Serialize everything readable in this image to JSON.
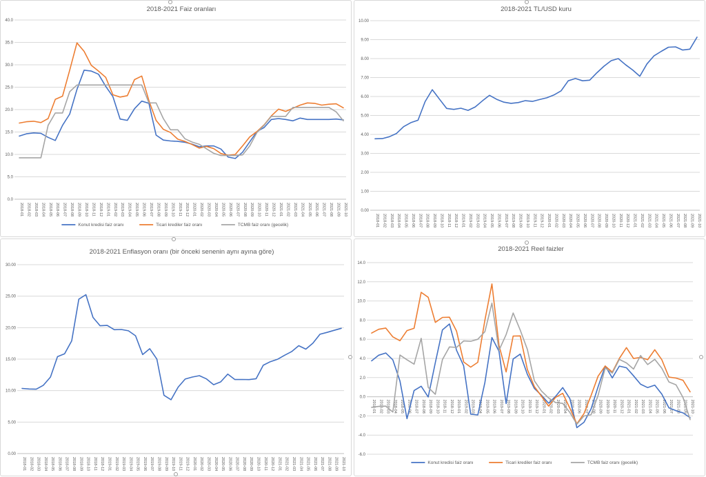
{
  "app": {
    "kind": "spreadsheet-chart-sheet",
    "background": "#ffffff"
  },
  "colors": {
    "series_blue": "#4472c4",
    "series_orange": "#ed7d31",
    "series_gray": "#a5a5a5",
    "gridline": "#d9d9d9",
    "axis": "#bfbfbf",
    "text": "#595959"
  },
  "legend_labels": [
    "Konut kredisi faiz oranı",
    "Ticari krediler faiz oranı",
    "TCMB faiz oranı (gecelik)"
  ],
  "chart_data": {
    "categories": [
      "2018-01",
      "2018-02",
      "2018-03",
      "2018-04",
      "2018-05",
      "2018-06",
      "2018-07",
      "2018-08",
      "2018-09",
      "2018-10",
      "2018-11",
      "2018-12",
      "2019-01",
      "2019-02",
      "2019-03",
      "2019-04",
      "2019-05",
      "2019-06",
      "2019-07",
      "2019-08",
      "2019-09",
      "2019-10",
      "2019-11",
      "2019-12",
      "2020-01",
      "2020-02",
      "2020-03",
      "2020-04",
      "2020-05",
      "2020-06",
      "2020-07",
      "2020-08",
      "2020-09",
      "2020-10",
      "2020-11",
      "2020-12",
      "2021-01",
      "2021-02",
      "2021-03",
      "2021-04",
      "2021-05",
      "2021-06",
      "2021-07",
      "2021-08",
      "2021-09",
      "2021-10"
    ],
    "charts": [
      {
        "id": "faiz",
        "type": "line",
        "title": "2018-2021 Faiz oranları",
        "ylim": [
          0,
          40
        ],
        "ystep": 5,
        "ydecimals": 1,
        "grid": true,
        "legend_position": "bottom",
        "series": [
          {
            "name": "Konut kredisi faiz oranı",
            "color": "series_blue",
            "values": [
              14.1,
              14.6,
              14.8,
              14.7,
              13.8,
              13.1,
              16.5,
              19.0,
              24.5,
              28.8,
              28.6,
              27.9,
              25.2,
              22.9,
              17.9,
              17.6,
              20.2,
              21.9,
              21.4,
              14.3,
              13.2,
              13.0,
              12.9,
              12.7,
              12.3,
              11.7,
              11.9,
              11.9,
              11.2,
              9.4,
              9.1,
              10.5,
              12.8,
              15.1,
              16.0,
              17.8,
              18.0,
              17.8,
              17.5,
              18.1,
              17.8,
              17.8,
              17.8,
              17.8,
              17.9,
              17.7
            ]
          },
          {
            "name": "Ticari krediler faiz oranı",
            "color": "series_orange",
            "values": [
              17.0,
              17.3,
              17.4,
              17.1,
              18.0,
              22.3,
              23.0,
              28.8,
              34.9,
              33.0,
              29.9,
              28.6,
              27.2,
              23.3,
              22.8,
              23.1,
              26.7,
              27.5,
              22.0,
              17.6,
              15.6,
              14.9,
              13.4,
              12.9,
              12.2,
              11.4,
              11.8,
              11.3,
              10.2,
              9.8,
              10.0,
              11.9,
              13.9,
              15.1,
              16.6,
              18.6,
              20.1,
              19.6,
              20.3,
              21.0,
              21.5,
              21.4,
              21.0,
              21.2,
              21.3,
              20.4
            ]
          },
          {
            "name": "TCMB faiz oranı (gecelik)",
            "color": "series_gray",
            "values": [
              9.25,
              9.25,
              9.25,
              9.25,
              16.5,
              19.25,
              19.25,
              24.0,
              25.5,
              25.5,
              25.5,
              25.5,
              25.5,
              25.5,
              25.5,
              25.5,
              25.5,
              25.5,
              21.5,
              21.5,
              18.0,
              15.5,
              15.5,
              13.5,
              12.75,
              12.25,
              11.25,
              10.25,
              9.75,
              9.75,
              9.75,
              9.9,
              11.9,
              14.9,
              16.5,
              18.5,
              18.5,
              18.5,
              20.5,
              20.5,
              20.5,
              20.5,
              20.5,
              20.5,
              19.5,
              17.5
            ]
          }
        ]
      },
      {
        "id": "usd",
        "type": "line",
        "title": "2018-2021 TL/USD kuru",
        "ylim": [
          0,
          10
        ],
        "ystep": 1,
        "ydecimals": 2,
        "grid": true,
        "legend_position": "none",
        "series": [
          {
            "name": "TL/USD",
            "color": "series_blue",
            "values": [
              3.77,
              3.78,
              3.88,
              4.05,
              4.41,
              4.62,
              4.75,
              5.73,
              6.36,
              5.86,
              5.37,
              5.32,
              5.38,
              5.27,
              5.45,
              5.77,
              6.06,
              5.85,
              5.7,
              5.64,
              5.68,
              5.78,
              5.74,
              5.84,
              5.93,
              6.08,
              6.3,
              6.83,
              6.95,
              6.83,
              6.86,
              7.25,
              7.6,
              7.89,
              8.0,
              7.68,
              7.4,
              7.07,
              7.72,
              8.15,
              8.38,
              8.6,
              8.62,
              8.45,
              8.5,
              9.13
            ]
          }
        ]
      },
      {
        "id": "enflasyon",
        "type": "line",
        "title": "2018-2021 Enflasyon oranı (bir önceki senenin aynı ayına göre)",
        "ylim": [
          0,
          30
        ],
        "ystep": 5,
        "ydecimals": 2,
        "grid": true,
        "legend_position": "none",
        "series": [
          {
            "name": "Enflasyon oranı",
            "color": "series_blue",
            "values": [
              10.35,
              10.26,
              10.23,
              10.85,
              12.15,
              15.39,
              15.85,
              17.9,
              24.52,
              25.24,
              21.62,
              20.3,
              20.35,
              19.67,
              19.71,
              19.5,
              18.71,
              15.72,
              16.65,
              15.01,
              9.26,
              8.55,
              10.56,
              11.84,
              12.15,
              12.37,
              11.86,
              10.94,
              11.39,
              12.62,
              11.76,
              11.77,
              11.75,
              11.89,
              14.03,
              14.6,
              14.97,
              15.61,
              16.19,
              17.14,
              16.59,
              17.53,
              18.95,
              19.25,
              19.58,
              19.89
            ]
          }
        ]
      },
      {
        "id": "reel",
        "type": "line",
        "title": "2018-2021 Reel faizler",
        "ylim": [
          -6,
          14
        ],
        "ystep": 2,
        "ydecimals": 1,
        "grid": true,
        "legend_position": "bottom",
        "x_labels_at_zero": true,
        "series": [
          {
            "name": "Konut kredisi faiz oranı",
            "color": "series_blue",
            "values": [
              3.75,
              4.34,
              4.57,
              3.85,
              1.65,
              -2.29,
              0.65,
              1.1,
              -0.02,
              3.56,
              6.98,
              7.6,
              4.85,
              3.23,
              -1.81,
              -1.9,
              1.49,
              6.18,
              4.75,
              -0.71,
              3.94,
              4.45,
              2.34,
              0.86,
              0.15,
              -0.67,
              0.04,
              0.96,
              -0.19,
              -3.22,
              -2.66,
              -1.27,
              1.05,
              3.21,
              1.97,
              3.2,
              3.03,
              2.19,
              1.31,
              0.96,
              1.21,
              0.27,
              -1.15,
              -1.45,
              -1.68,
              -2.19
            ]
          },
          {
            "name": "Ticari krediler faiz oranı",
            "color": "series_orange",
            "values": [
              6.65,
              7.04,
              7.17,
              6.25,
              5.85,
              6.91,
              7.15,
              10.9,
              10.38,
              7.76,
              8.28,
              8.3,
              6.85,
              3.63,
              3.09,
              3.6,
              7.99,
              11.78,
              5.35,
              2.59,
              6.34,
              6.35,
              2.84,
              1.06,
              0.05,
              -0.97,
              -0.06,
              0.36,
              -1.19,
              -2.82,
              -1.76,
              0.13,
              2.15,
              3.21,
              2.57,
              4.0,
              5.13,
              3.99,
              4.11,
              3.86,
              4.91,
              3.87,
              2.05,
              1.95,
              1.72,
              0.51
            ]
          },
          {
            "name": "TCMB faiz oranı (gecelik)",
            "color": "series_gray",
            "values": [
              -1.1,
              -1.01,
              -0.98,
              -1.6,
              4.35,
              3.86,
              3.4,
              6.1,
              0.98,
              0.26,
              3.88,
              5.2,
              5.15,
              5.83,
              5.79,
              6.0,
              6.79,
              9.78,
              4.85,
              6.49,
              8.74,
              6.95,
              4.94,
              1.66,
              0.6,
              -0.12,
              -0.61,
              -0.69,
              -1.64,
              -2.87,
              -2.01,
              -1.87,
              0.15,
              3.01,
              2.47,
              3.9,
              3.53,
              2.89,
              4.31,
              3.36,
              3.91,
              2.97,
              1.55,
              1.25,
              -0.08,
              -2.39
            ]
          }
        ]
      }
    ]
  }
}
